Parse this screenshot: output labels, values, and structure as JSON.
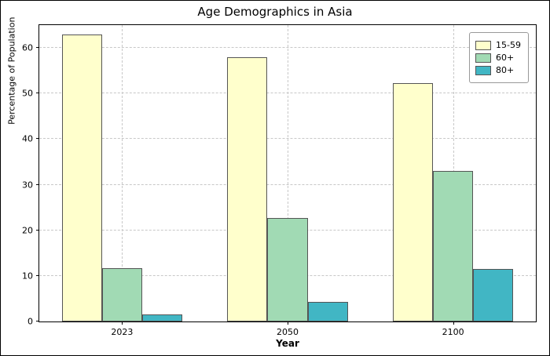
{
  "chart_data": {
    "type": "bar",
    "title": "Age Demographics in Asia",
    "xlabel": "Year",
    "ylabel": "Percentage of Population",
    "categories": [
      "2023",
      "2050",
      "2100"
    ],
    "series": [
      {
        "name": "15-59",
        "color": "#ffffcc",
        "values": [
          63.0,
          58.0,
          52.3
        ]
      },
      {
        "name": "60+",
        "color": "#a1dab4",
        "values": [
          11.7,
          22.7,
          33.1
        ]
      },
      {
        "name": "80+",
        "color": "#41b6c4",
        "values": [
          1.5,
          4.3,
          11.5
        ]
      }
    ],
    "yticks": [
      0,
      10,
      20,
      30,
      40,
      50,
      60
    ],
    "ylim": [
      0,
      65
    ],
    "grid": "dashed",
    "legend_position": "upper right",
    "bar_edge_color": "#555555"
  }
}
